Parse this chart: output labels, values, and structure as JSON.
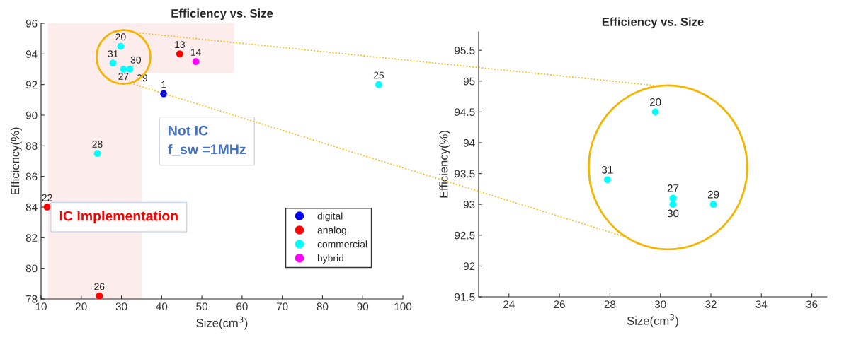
{
  "chart_data": [
    {
      "type": "scatter",
      "title": "Efficiency vs. Size",
      "xlabel": "Size(cm$^{3}$)",
      "ylabel": "Efficiency(%)",
      "xlim": [
        10,
        100
      ],
      "xticks": [
        10,
        20,
        30,
        40,
        50,
        60,
        70,
        80,
        90,
        100
      ],
      "ylim": [
        78,
        96
      ],
      "yticks": [
        78,
        80,
        82,
        84,
        86,
        88,
        90,
        92,
        94,
        96
      ],
      "marker": "circle",
      "legend": "bottom right",
      "grid": false,
      "series": [
        {
          "name": "digital",
          "color": "#0000ff",
          "x": [
            40.5
          ],
          "values": [
            91.4
          ]
        },
        {
          "name": "analog",
          "color": "#ff0000",
          "x": [
            44.5,
            11.5,
            24.5
          ],
          "values": [
            94.0,
            84.0,
            78.2
          ]
        },
        {
          "name": "commercial",
          "color": "#00ffff",
          "x": [
            29.8,
            27.9,
            30.5,
            32.1,
            24.0,
            94.0
          ],
          "values": [
            94.5,
            93.4,
            93.0,
            93.0,
            87.5,
            92.0
          ]
        },
        {
          "name": "hybrid",
          "color": "#ff00ff",
          "x": [
            48.5
          ],
          "values": [
            93.5
          ]
        }
      ],
      "bands": [
        {
          "axis": "x",
          "from": 11.7,
          "to": 35,
          "color": "#fcecec"
        }
      ],
      "annotations": [
        {
          "text": "1",
          "x": 40.5,
          "y": 91.4
        },
        {
          "text": "13",
          "x": 44.5,
          "y": 94.0
        },
        {
          "text": "22",
          "x": 11.5,
          "y": 84.0
        },
        {
          "text": "26",
          "x": 24.5,
          "y": 78.2
        },
        {
          "text": "20",
          "x": 29.8,
          "y": 94.5
        },
        {
          "text": "31",
          "x": 27.9,
          "y": 93.4
        },
        {
          "text": "27",
          "x": 30.5,
          "y": 93.1
        },
        {
          "text": "30",
          "x": 30.5,
          "y": 93.0
        },
        {
          "text": "29",
          "x": 32.1,
          "y": 93.0
        },
        {
          "text": "28",
          "x": 24.0,
          "y": 87.5
        },
        {
          "text": "25",
          "x": 94.0,
          "y": 92.0
        },
        {
          "text": "14",
          "x": 48.5,
          "y": 93.5
        },
        "Not IC\nf_sw =1MHz",
        "IC Implementation"
      ]
    },
    {
      "type": "scatter",
      "title": "Efficiency vs. Size",
      "xlabel": "Size(cm$^{3}$)",
      "ylabel": "Efficiency(%)",
      "xlim": [
        22.8,
        36.6
      ],
      "xticks": [
        24,
        26,
        28,
        30,
        32,
        34,
        36
      ],
      "ylim": [
        91.5,
        95.8
      ],
      "yticks": [
        91.5,
        92,
        92.5,
        93,
        93.5,
        94,
        94.5,
        95,
        95.5
      ],
      "marker": "circle",
      "grid": false,
      "series": [
        {
          "color": "#00ffff",
          "x": [
            29.8,
            27.9,
            30.5,
            30.5,
            32.1
          ],
          "values": [
            94.5,
            93.4,
            93.1,
            93.0,
            93.0
          ]
        }
      ],
      "annotations": [
        {
          "text": "20",
          "x": 29.8,
          "y": 94.5
        },
        {
          "text": "31",
          "x": 27.9,
          "y": 93.4
        },
        {
          "text": "27",
          "x": 30.5,
          "y": 93.1
        },
        {
          "text": "30",
          "x": 30.5,
          "y": 93.0
        },
        {
          "text": "29",
          "x": 32.1,
          "y": 93.0
        }
      ]
    }
  ]
}
